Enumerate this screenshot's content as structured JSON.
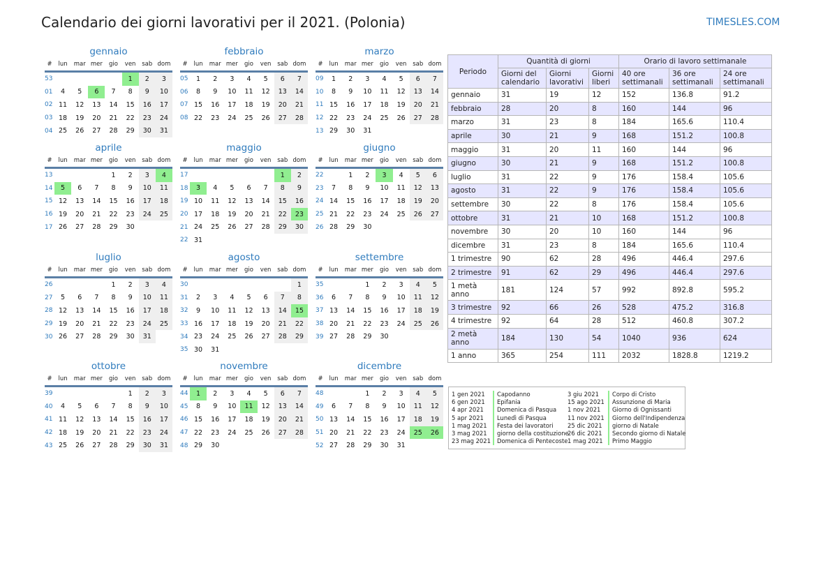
{
  "title": "Calendario dei giorni lavorativi per il 2021. (Polonia)",
  "brand": "TIMESLES.COM",
  "weekday_headers": [
    "#",
    "lun",
    "mar",
    "mer",
    "gio",
    "ven",
    "sab",
    "dom"
  ],
  "months": [
    {
      "name": "gennaio",
      "start": 4,
      "days": 31,
      "weeks": [
        53,
        1,
        2,
        3,
        4
      ],
      "holidays": [
        1,
        6
      ]
    },
    {
      "name": "febbraio",
      "start": 0,
      "days": 28,
      "weeks": [
        5,
        6,
        7,
        8
      ],
      "holidays": []
    },
    {
      "name": "marzo",
      "start": 0,
      "days": 31,
      "weeks": [
        9,
        10,
        11,
        12,
        13
      ],
      "holidays": []
    },
    {
      "name": "aprile",
      "start": 3,
      "days": 30,
      "weeks": [
        13,
        14,
        15,
        16,
        17
      ],
      "holidays": [
        4,
        5
      ]
    },
    {
      "name": "maggio",
      "start": 5,
      "days": 31,
      "weeks": [
        17,
        18,
        19,
        20,
        21,
        22
      ],
      "holidays": [
        1,
        3,
        23
      ]
    },
    {
      "name": "giugno",
      "start": 1,
      "days": 30,
      "weeks": [
        22,
        23,
        24,
        25,
        26
      ],
      "holidays": [
        3
      ]
    },
    {
      "name": "luglio",
      "start": 3,
      "days": 31,
      "weeks": [
        26,
        27,
        28,
        29,
        30
      ],
      "holidays": []
    },
    {
      "name": "agosto",
      "start": 6,
      "days": 31,
      "weeks": [
        30,
        31,
        32,
        33,
        34,
        35
      ],
      "holidays": [
        15
      ]
    },
    {
      "name": "settembre",
      "start": 2,
      "days": 30,
      "weeks": [
        35,
        36,
        37,
        38,
        39
      ],
      "holidays": []
    },
    {
      "name": "ottobre",
      "start": 4,
      "days": 31,
      "weeks": [
        39,
        40,
        41,
        42,
        43
      ],
      "holidays": []
    },
    {
      "name": "novembre",
      "start": 0,
      "days": 30,
      "weeks": [
        44,
        45,
        46,
        47,
        48
      ],
      "holidays": [
        1,
        11
      ]
    },
    {
      "name": "dicembre",
      "start": 2,
      "days": 31,
      "weeks": [
        48,
        49,
        50,
        51,
        52
      ],
      "holidays": [
        25,
        26
      ]
    }
  ],
  "summary": {
    "header": {
      "period": "Periodo",
      "group_days": "Quantità di giorni",
      "group_hours": "Orario di lavoro settimanale",
      "calendar_days": "Giorni del calendario",
      "working_days": "Giorni lavorativi",
      "free_days": "Giorni liberi",
      "h40": "40 ore settimanali",
      "h36": "36 ore settimanali",
      "h24": "24 ore settimanali"
    },
    "rows": [
      {
        "period": "gennaio",
        "cal": "31",
        "work": "19",
        "free": "12",
        "h40": "152",
        "h36": "136.8",
        "h24": "91.2"
      },
      {
        "period": "febbraio",
        "cal": "28",
        "work": "20",
        "free": "8",
        "h40": "160",
        "h36": "144",
        "h24": "96"
      },
      {
        "period": "marzo",
        "cal": "31",
        "work": "23",
        "free": "8",
        "h40": "184",
        "h36": "165.6",
        "h24": "110.4"
      },
      {
        "period": "aprile",
        "cal": "30",
        "work": "21",
        "free": "9",
        "h40": "168",
        "h36": "151.2",
        "h24": "100.8"
      },
      {
        "period": "maggio",
        "cal": "31",
        "work": "20",
        "free": "11",
        "h40": "160",
        "h36": "144",
        "h24": "96"
      },
      {
        "period": "giugno",
        "cal": "30",
        "work": "21",
        "free": "9",
        "h40": "168",
        "h36": "151.2",
        "h24": "100.8"
      },
      {
        "period": "luglio",
        "cal": "31",
        "work": "22",
        "free": "9",
        "h40": "176",
        "h36": "158.4",
        "h24": "105.6"
      },
      {
        "period": "agosto",
        "cal": "31",
        "work": "22",
        "free": "9",
        "h40": "176",
        "h36": "158.4",
        "h24": "105.6"
      },
      {
        "period": "settembre",
        "cal": "30",
        "work": "22",
        "free": "8",
        "h40": "176",
        "h36": "158.4",
        "h24": "105.6"
      },
      {
        "period": "ottobre",
        "cal": "31",
        "work": "21",
        "free": "10",
        "h40": "168",
        "h36": "151.2",
        "h24": "100.8"
      },
      {
        "period": "novembre",
        "cal": "30",
        "work": "20",
        "free": "10",
        "h40": "160",
        "h36": "144",
        "h24": "96"
      },
      {
        "period": "dicembre",
        "cal": "31",
        "work": "23",
        "free": "8",
        "h40": "184",
        "h36": "165.6",
        "h24": "110.4"
      },
      {
        "period": "1 trimestre",
        "cal": "90",
        "work": "62",
        "free": "28",
        "h40": "496",
        "h36": "446.4",
        "h24": "297.6"
      },
      {
        "period": "2 trimestre",
        "cal": "91",
        "work": "62",
        "free": "29",
        "h40": "496",
        "h36": "446.4",
        "h24": "297.6"
      },
      {
        "period": "1 metà anno",
        "cal": "181",
        "work": "124",
        "free": "57",
        "h40": "992",
        "h36": "892.8",
        "h24": "595.2"
      },
      {
        "period": "3 trimestre",
        "cal": "92",
        "work": "66",
        "free": "26",
        "h40": "528",
        "h36": "475.2",
        "h24": "316.8"
      },
      {
        "period": "4 trimestre",
        "cal": "92",
        "work": "64",
        "free": "28",
        "h40": "512",
        "h36": "460.8",
        "h24": "307.2"
      },
      {
        "period": "2 metà anno",
        "cal": "184",
        "work": "130",
        "free": "54",
        "h40": "1040",
        "h36": "936",
        "h24": "624"
      },
      {
        "period": "1 anno",
        "cal": "365",
        "work": "254",
        "free": "111",
        "h40": "2032",
        "h36": "1828.8",
        "h24": "1219.2"
      }
    ]
  },
  "legend": [
    {
      "d1": "1 gen 2021",
      "n1": "Capodanno",
      "d2": "3 giu 2021",
      "n2": "Corpo di Cristo"
    },
    {
      "d1": "6 gen 2021",
      "n1": "Epifania",
      "d2": "15 ago 2021",
      "n2": "Assunzione di Maria"
    },
    {
      "d1": "4 apr 2021",
      "n1": "Domenica di Pasqua",
      "d2": "1 nov 2021",
      "n2": "Giorno di Ognissanti"
    },
    {
      "d1": "5 apr 2021",
      "n1": "Lunedì di Pasqua",
      "d2": "11 nov 2021",
      "n2": "Giorno dell'Indipendenza"
    },
    {
      "d1": "1 mag 2021",
      "n1": "Festa dei lavoratori",
      "d2": "25 dic 2021",
      "n2": "giorno di Natale"
    },
    {
      "d1": "3 mag 2021",
      "n1": "giorno della costituzione",
      "d2": "26 dic 2021",
      "n2": "Secondo giorno di Natale"
    },
    {
      "d1": "23 mag 2021",
      "n1": "Domenica di Pentecoste",
      "d2": "1 mag 2021",
      "n2": "Primo Maggio"
    }
  ]
}
